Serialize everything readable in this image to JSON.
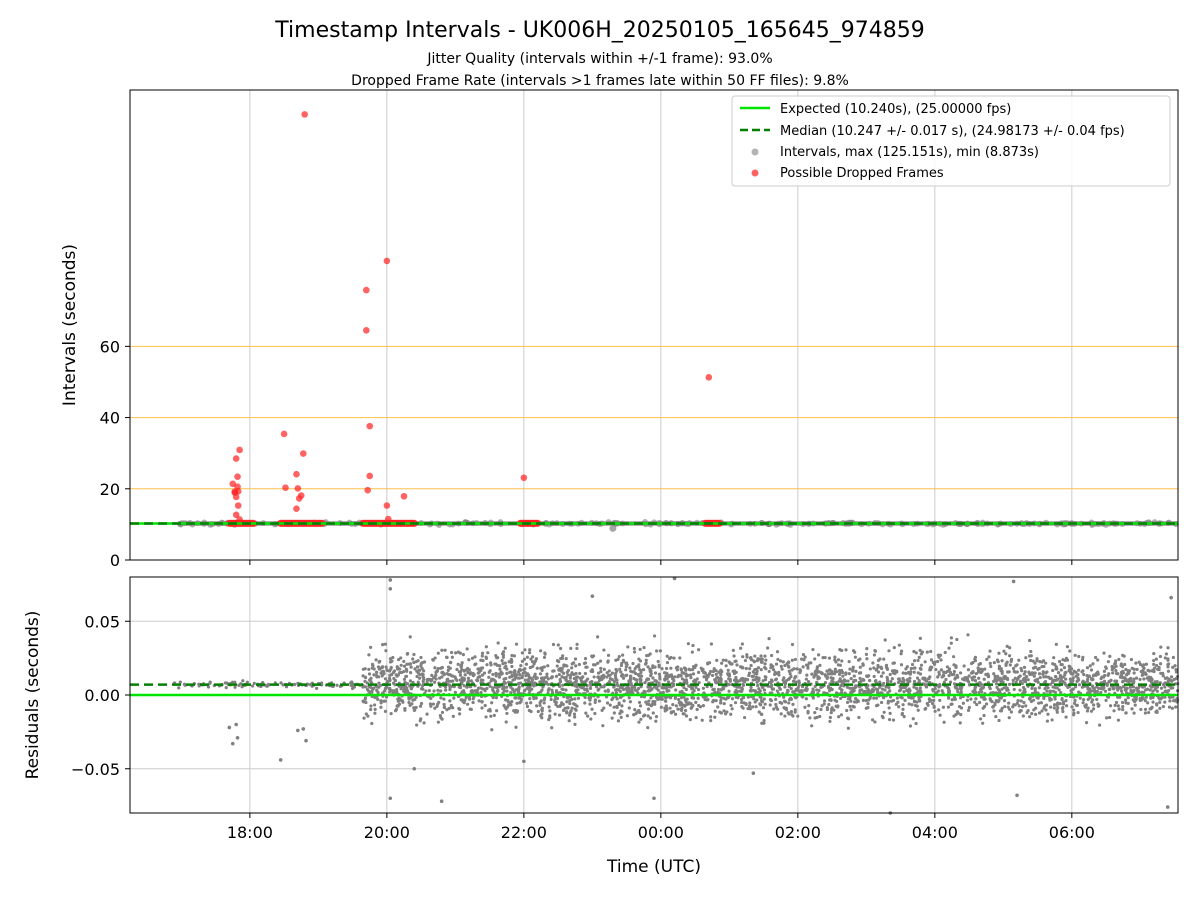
{
  "figure": {
    "title": "Timestamp Intervals - UK006H_20250105_165645_974859",
    "subtitle_jitter": "Jitter Quality (intervals within +/-1 frame): 93.0%",
    "subtitle_dropped": "Dropped Frame Rate (intervals >1 frames late within 50 FF files): 9.8%"
  },
  "colors": {
    "expected": "#00e600",
    "median": "#007f00",
    "intervals": "#808080",
    "dropped": "#ff2020",
    "threshold_lines": "#ffc04d",
    "grid": "#cccccc"
  },
  "chart_data": [
    {
      "type": "scatter",
      "name": "intervals-panel",
      "ylabel": "Intervals (seconds)",
      "xlabel": "",
      "x_unit": "hours since 00:00 UTC (negative = previous day)",
      "xlim": [
        -7.75,
        7.55
      ],
      "ylim": [
        0,
        132
      ],
      "xticks": [
        -6,
        -4,
        -2,
        0,
        2,
        4,
        6
      ],
      "yticks": [
        0,
        20,
        40,
        60
      ],
      "ytick_labels": [
        "0",
        "20",
        "40",
        "60"
      ],
      "grid": "vertical",
      "threshold_lines": [
        20,
        40,
        60
      ],
      "legend_position": "top-right",
      "legend": [
        "Expected (10.240s), (25.00000 fps)",
        "Median (10.247 +/- 0.017 s), (24.98173 +/- 0.04 fps)",
        "Intervals, max (125.151s), min (8.873s)",
        "Possible Dropped Frames"
      ],
      "expected_interval": 10.24,
      "median_interval": 10.247,
      "intervals_band": {
        "x_range": [
          -7.05,
          7.55
        ],
        "y_range": [
          9.6,
          10.9
        ]
      },
      "minimum_interval_point": [
        -0.7,
        8.873
      ],
      "dropped_frame_clusters": [
        {
          "x_range": [
            -6.3,
            -5.95
          ],
          "y": 10.3
        },
        {
          "x_range": [
            -5.55,
            -4.95
          ],
          "y": 10.3
        },
        {
          "x_range": [
            -4.35,
            -3.6
          ],
          "y": 10.3
        },
        {
          "x_range": [
            -2.05,
            -1.8
          ],
          "y": 10.3
        },
        {
          "x_range": [
            0.65,
            0.85
          ],
          "y": 10.3
        }
      ],
      "dropped_frames": [
        [
          -6.25,
          21.4
        ],
        [
          -6.22,
          19.2
        ],
        [
          -6.18,
          20.6
        ],
        [
          -6.2,
          28.5
        ],
        [
          -6.18,
          23.4
        ],
        [
          -6.15,
          30.9
        ],
        [
          -6.17,
          19.3
        ],
        [
          -6.2,
          17.7
        ],
        [
          -6.17,
          15.3
        ],
        [
          -6.2,
          12.7
        ],
        [
          -6.15,
          11.4
        ],
        [
          -6.22,
          18.9
        ],
        [
          -5.5,
          35.4
        ],
        [
          -5.48,
          20.3
        ],
        [
          -5.32,
          24.1
        ],
        [
          -5.3,
          20.1
        ],
        [
          -5.32,
          14.4
        ],
        [
          -5.28,
          17.3
        ],
        [
          -5.25,
          18.1
        ],
        [
          -5.22,
          29.9
        ],
        [
          -5.2,
          125.151
        ],
        [
          -4.3,
          75.8
        ],
        [
          -4.3,
          64.5
        ],
        [
          -4.25,
          37.6
        ],
        [
          -4.25,
          23.6
        ],
        [
          -4.28,
          19.6
        ],
        [
          -4.0,
          84.0
        ],
        [
          -4.0,
          15.3
        ],
        [
          -3.98,
          11.5
        ],
        [
          -3.75,
          17.9
        ],
        [
          -2.0,
          23.1
        ],
        [
          0.7,
          51.3
        ]
      ]
    },
    {
      "type": "scatter",
      "name": "residuals-panel",
      "ylabel": "Residuals (seconds)",
      "xlabel": "Time (UTC)",
      "xlim": [
        -7.75,
        7.55
      ],
      "ylim": [
        -0.08,
        0.08
      ],
      "xticks": [
        -6,
        -4,
        -2,
        0,
        2,
        4,
        6
      ],
      "xtick_labels": [
        "18:00",
        "20:00",
        "22:00",
        "00:00",
        "02:00",
        "04:00",
        "06:00"
      ],
      "yticks": [
        0.05,
        0.0,
        -0.05
      ],
      "ytick_labels": [
        "0.05",
        "0.00",
        "−0.05"
      ],
      "grid": "both",
      "expected_residual": 0.0,
      "median_residual": 0.007,
      "residual_segments": [
        {
          "x_range": [
            -7.05,
            -4.35
          ],
          "center": 0.007,
          "spread": 0.002
        },
        {
          "x_range": [
            -4.35,
            7.55
          ],
          "center": 0.007,
          "spread": 0.022
        }
      ],
      "residual_outliers": [
        [
          -7.1,
          0.008
        ],
        [
          -6.25,
          -0.033
        ],
        [
          -6.2,
          -0.02
        ],
        [
          -6.18,
          -0.029
        ],
        [
          -6.3,
          -0.022
        ],
        [
          -5.55,
          -0.044
        ],
        [
          -5.3,
          -0.024
        ],
        [
          -5.22,
          -0.023
        ],
        [
          -5.18,
          -0.031
        ],
        [
          -3.95,
          0.078
        ],
        [
          -3.95,
          0.072
        ],
        [
          -3.95,
          -0.07
        ],
        [
          -3.6,
          -0.05
        ],
        [
          -3.2,
          -0.072
        ],
        [
          -2.0,
          -0.045
        ],
        [
          -1.0,
          0.067
        ],
        [
          -0.1,
          -0.07
        ],
        [
          0.2,
          0.079
        ],
        [
          1.35,
          -0.053
        ],
        [
          3.35,
          -0.08
        ],
        [
          5.15,
          0.077
        ],
        [
          5.2,
          -0.068
        ],
        [
          7.4,
          -0.076
        ],
        [
          7.45,
          0.066
        ]
      ]
    }
  ]
}
